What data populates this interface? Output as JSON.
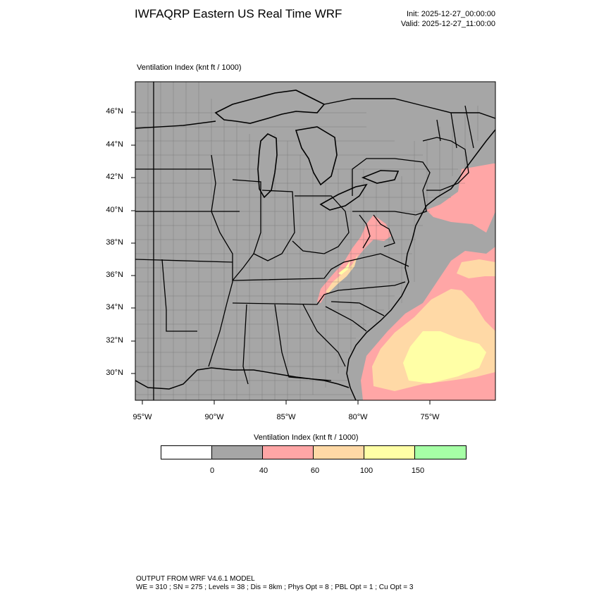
{
  "header": {
    "title": "IWFAQRP Eastern US Real Time WRF",
    "init": "Init: 2025-12-27_00:00:00",
    "valid": "Valid: 2025-12-27_11:00:00"
  },
  "map": {
    "field_label": "Ventilation Index   (knt ft / 1000)",
    "lat_labels": [
      "46°N",
      "44°N",
      "42°N",
      "40°N",
      "38°N",
      "36°N",
      "34°N",
      "32°N",
      "30°N"
    ],
    "lon_labels": [
      "95°W",
      "90°W",
      "85°W",
      "80°W",
      "75°W"
    ]
  },
  "colorbar": {
    "title": "Ventilation Index  (knt ft / 1000)",
    "colors": [
      "#ffffff",
      "#a6a6a6",
      "#ffa6a6",
      "#ffd9a6",
      "#ffffa6",
      "#a6ffa6"
    ],
    "tick_labels": [
      "0",
      "40",
      "60",
      "100",
      "150"
    ]
  },
  "footer": {
    "line1": "OUTPUT FROM WRF V4.6.1 MODEL",
    "line2": "WE = 310 ; SN = 275 ; Levels = 38 ; Dis = 8km ; Phys Opt = 8 ; PBL Opt = 1 ; Cu Opt = 3"
  }
}
